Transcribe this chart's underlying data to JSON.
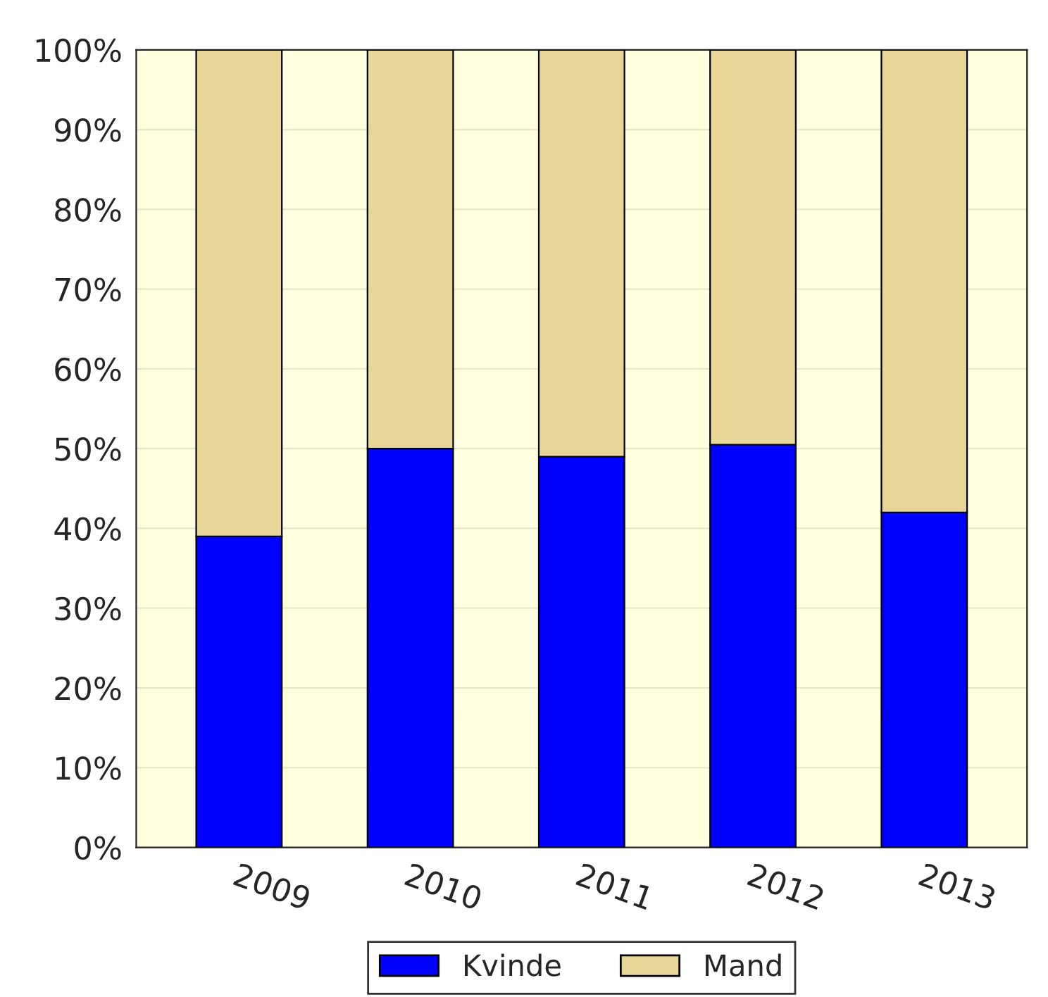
{
  "chart_data": {
    "type": "bar",
    "stacked": true,
    "categories": [
      "2009",
      "2010",
      "2011",
      "2012",
      "2013"
    ],
    "series": [
      {
        "name": "Kvinde",
        "color": "#0000ff",
        "values": [
          39,
          50,
          49,
          50.5,
          42
        ]
      },
      {
        "name": "Mand",
        "color": "#e8d598",
        "values": [
          61,
          50,
          51,
          49.5,
          58
        ]
      }
    ],
    "ylim": [
      0,
      100
    ],
    "yticks": [
      {
        "value": 0,
        "label": "0%"
      },
      {
        "value": 10,
        "label": "10%"
      },
      {
        "value": 20,
        "label": "20%"
      },
      {
        "value": 30,
        "label": "30%"
      },
      {
        "value": 40,
        "label": "40%"
      },
      {
        "value": 50,
        "label": "50%"
      },
      {
        "value": 60,
        "label": "60%"
      },
      {
        "value": 70,
        "label": "70%"
      },
      {
        "value": 80,
        "label": "80%"
      },
      {
        "value": 90,
        "label": "90%"
      },
      {
        "value": 100,
        "label": "100%"
      }
    ],
    "grid": "y",
    "legend": "bottom"
  }
}
